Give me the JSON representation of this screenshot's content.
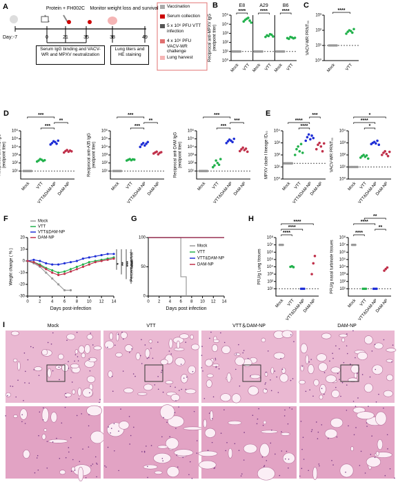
{
  "timeline": {
    "panel": "A",
    "top": "Protein + FH002C",
    "monitor": "Monitor weight loss and survival",
    "day_label": "Day:",
    "days": [
      -7,
      0,
      21,
      35,
      38,
      49
    ],
    "box1": "Serum IgG binding and VACV-WR and MPXV neutralization",
    "box2": "Lung titers and HE staining",
    "legend": [
      "Vaccination",
      "Serum collection",
      "5 x 10⁶ PFU VTT infection",
      "4 x 10⁶ PFU VACV-WR challenge",
      "Lung harvest"
    ]
  },
  "chart_data": [
    {
      "panel": "B",
      "type": "dot",
      "ylabel": [
        "Reciprocal anti-MPXV IgG",
        "(endpoint titer)"
      ],
      "log": true,
      "ylim": [
        1,
        100000
      ],
      "yticks": [
        {
          "value": 1,
          "label": "10⁰"
        },
        {
          "value": 10,
          "label": "10¹"
        },
        {
          "value": 100,
          "label": "10²"
        },
        {
          "value": 1000,
          "label": "10³"
        },
        {
          "value": 10000,
          "label": "10⁴"
        },
        {
          "value": 100000,
          "label": "10⁵"
        }
      ],
      "groups": [
        "E8",
        "A29",
        "B6"
      ],
      "categories": [
        "Mock",
        "VTT",
        "Mock",
        "VTT",
        "Mock",
        "VTT"
      ],
      "colors": [
        "#999999",
        "#22b14c",
        "#999999",
        "#22b14c",
        "#999999",
        "#22b14c"
      ],
      "points": [
        [
          10,
          10,
          10,
          10,
          10,
          10
        ],
        [
          20000,
          30000,
          40000,
          50000,
          25000,
          15000
        ],
        [
          10,
          10,
          10,
          10,
          10,
          10
        ],
        [
          400,
          600,
          500,
          800,
          700,
          450
        ],
        [
          10,
          10,
          10,
          10,
          10,
          10
        ],
        [
          300,
          250,
          400,
          350,
          280,
          320
        ]
      ],
      "limit": 10,
      "significance": [
        {
          "pair": [
            0,
            1
          ],
          "label": "****"
        },
        {
          "pair": [
            2,
            3
          ],
          "label": "****"
        },
        {
          "pair": [
            4,
            5
          ],
          "label": "****"
        }
      ]
    },
    {
      "panel": "C",
      "type": "dot",
      "ylabel": [
        "VACV-WR PRNT₅₀"
      ],
      "log": true,
      "ylim": [
        1,
        1000
      ],
      "yticks": [
        {
          "value": 1,
          "label": "10⁰"
        },
        {
          "value": 10,
          "label": "10¹"
        },
        {
          "value": 100,
          "label": "10²"
        },
        {
          "value": 1000,
          "label": "10³"
        }
      ],
      "categories": [
        "Mock",
        "VTT"
      ],
      "colors": [
        "#999999",
        "#22b14c"
      ],
      "points": [
        [
          10,
          10,
          10,
          10,
          10,
          10
        ],
        [
          60,
          80,
          100,
          90,
          70,
          120
        ]
      ],
      "limit": 10,
      "significance": [
        {
          "pair": [
            0,
            1
          ],
          "label": "****"
        }
      ]
    },
    {
      "panel": "D",
      "type": "dot",
      "ylabel": [
        "Reciprocal anti-M1 IgG",
        "(endpoint titer)"
      ],
      "log": true,
      "ylim": [
        1,
        1000000
      ],
      "yticks": [
        {
          "value": 10,
          "label": "10¹"
        },
        {
          "value": 100,
          "label": "10²"
        },
        {
          "value": 1000,
          "label": "10³"
        },
        {
          "value": 10000,
          "label": "10⁴"
        },
        {
          "value": 100000,
          "label": "10⁵"
        },
        {
          "value": 1000000,
          "label": "10⁶"
        }
      ],
      "categories": [
        "Mock",
        "VTT",
        "VTT&DAM-NP",
        "DAM-NP"
      ],
      "colors": [
        "#999999",
        "#22b14c",
        "#1f2fd6",
        "#c0304a"
      ],
      "points": [
        [
          10,
          10,
          10,
          10,
          10,
          10
        ],
        [
          150,
          200,
          300,
          250,
          180,
          220
        ],
        [
          20000,
          30000,
          50000,
          40000,
          25000,
          60000
        ],
        [
          2000,
          3000,
          4000,
          2500,
          3500,
          2800
        ]
      ],
      "limit": 10,
      "significance": [
        {
          "pair": [
            1,
            2
          ],
          "label": "***"
        },
        {
          "pair": [
            2,
            3
          ],
          "label": "**"
        },
        {
          "pair": [
            0,
            2
          ],
          "label": "***"
        }
      ]
    },
    {
      "type": "dot",
      "ylabel": [
        "Reciprocal anti-A35 IgG",
        "(endpoint titer)"
      ],
      "log": true,
      "ylim": [
        1,
        1000000
      ],
      "yticks": [
        {
          "value": 10,
          "label": "10¹"
        },
        {
          "value": 100,
          "label": "10²"
        },
        {
          "value": 1000,
          "label": "10³"
        },
        {
          "value": 10000,
          "label": "10⁴"
        },
        {
          "value": 100000,
          "label": "10⁵"
        },
        {
          "value": 1000000,
          "label": "10⁶"
        }
      ],
      "categories": [
        "Mock",
        "VTT",
        "VTT&DAM-NP",
        "DAM-NP"
      ],
      "colors": [
        "#999999",
        "#22b14c",
        "#1f2fd6",
        "#c0304a"
      ],
      "points": [
        [
          10,
          10,
          10,
          10,
          10,
          10
        ],
        [
          200,
          250,
          300,
          220,
          280,
          260
        ],
        [
          10000,
          20000,
          30000,
          15000,
          25000,
          40000
        ],
        [
          1500,
          2000,
          2500,
          1200,
          1800,
          2200
        ]
      ],
      "limit": 10,
      "significance": [
        {
          "pair": [
            1,
            2
          ],
          "label": "***"
        },
        {
          "pair": [
            2,
            3
          ],
          "label": "**"
        },
        {
          "pair": [
            0,
            2
          ],
          "label": "***"
        }
      ]
    },
    {
      "type": "dot",
      "ylabel": [
        "Reciprocal anti-DAM IgG",
        "(endpoint titer)"
      ],
      "log": true,
      "ylim": [
        1,
        1000000
      ],
      "yticks": [
        {
          "value": 10,
          "label": "10¹"
        },
        {
          "value": 100,
          "label": "10²"
        },
        {
          "value": 1000,
          "label": "10³"
        },
        {
          "value": 10000,
          "label": "10⁴"
        },
        {
          "value": 100000,
          "label": "10⁵"
        },
        {
          "value": 1000000,
          "label": "10⁶"
        }
      ],
      "categories": [
        "Mock",
        "VTT",
        "VTT&DAM-NP",
        "DAM-NP"
      ],
      "colors": [
        "#999999",
        "#22b14c",
        "#1f2fd6",
        "#c0304a"
      ],
      "points": [
        [
          10,
          10,
          10,
          10,
          10,
          10
        ],
        [
          30,
          50,
          200,
          100,
          60,
          300
        ],
        [
          30000,
          50000,
          80000,
          60000,
          40000,
          100000
        ],
        [
          3000,
          5000,
          8000,
          4000,
          6000,
          2500
        ]
      ],
      "limit": 10,
      "significance": [
        {
          "pair": [
            1,
            2
          ],
          "label": "***"
        },
        {
          "pair": [
            2,
            3
          ],
          "label": "***"
        },
        {
          "pair": [
            0,
            2
          ],
          "label": "***"
        }
      ]
    },
    {
      "panel": "E",
      "type": "dot",
      "ylabel": [
        "MPXV clade I lineage ID₅₀"
      ],
      "log": true,
      "ylim": [
        1,
        10000
      ],
      "yticks": [
        {
          "value": 1,
          "label": "10⁰"
        },
        {
          "value": 10,
          "label": "10¹"
        },
        {
          "value": 100,
          "label": "10²"
        },
        {
          "value": 1000,
          "label": "10³"
        },
        {
          "value": 10000,
          "label": "10⁴"
        }
      ],
      "categories": [
        "Mock",
        "VTT",
        "VTT&DAM-NP",
        "DAM-NP"
      ],
      "colors": [
        "#999999",
        "#22b14c",
        "#1f2fd6",
        "#c0304a"
      ],
      "points": [
        [
          20,
          20,
          20,
          20,
          20,
          20
        ],
        [
          100,
          300,
          500,
          200,
          800,
          150
        ],
        [
          1500,
          3000,
          5000,
          2000,
          4000,
          2500
        ],
        [
          300,
          700,
          1000,
          500,
          200,
          900
        ]
      ],
      "limit": 20,
      "significance": [
        {
          "pair": [
            1,
            2
          ],
          "label": "****"
        },
        {
          "pair": [
            0,
            2
          ],
          "label": "****"
        },
        {
          "pair": [
            2,
            3
          ],
          "label": "***"
        }
      ]
    },
    {
      "type": "dot",
      "ylabel": [
        "VACV-WR PRNT₅₀"
      ],
      "log": true,
      "ylim": [
        1,
        10000
      ],
      "yticks": [
        {
          "value": 1,
          "label": "10⁰"
        },
        {
          "value": 10,
          "label": "10¹"
        },
        {
          "value": 100,
          "label": "10²"
        },
        {
          "value": 1000,
          "label": "10³"
        },
        {
          "value": 10000,
          "label": "10⁴"
        }
      ],
      "categories": [
        "Mock",
        "VTT",
        "VTT&DAM-NP",
        "DAM-NP"
      ],
      "colors": [
        "#999999",
        "#22b14c",
        "#1f2fd6",
        "#c0304a"
      ],
      "points": [
        [
          10,
          10,
          10,
          10,
          10,
          10
        ],
        [
          60,
          80,
          100,
          70,
          90,
          50
        ],
        [
          800,
          1000,
          1200,
          900,
          1500,
          700
        ],
        [
          100,
          150,
          200,
          120,
          80,
          180
        ]
      ],
      "limit": 10,
      "significance": [
        {
          "pair": [
            1,
            2
          ],
          "label": "*"
        },
        {
          "pair": [
            0,
            2
          ],
          "label": "****"
        },
        {
          "pair": [
            0,
            3
          ],
          "label": "*"
        }
      ]
    },
    {
      "panel": "F",
      "type": "line",
      "ylabel": [
        "Weight change ( % )"
      ],
      "xlabel": "Days post-infection",
      "xlim": [
        0,
        14
      ],
      "xticks": [
        0,
        2,
        4,
        6,
        8,
        10,
        12,
        14
      ],
      "ylim": [
        -30,
        20
      ],
      "yticks": [
        -30,
        -20,
        -10,
        0,
        10,
        20
      ],
      "x": [
        0,
        1,
        2,
        3,
        4,
        5,
        6,
        7,
        8,
        9,
        10,
        11,
        12,
        13,
        14
      ],
      "markers": true,
      "series": [
        {
          "name": "Mock",
          "color": "#999999",
          "values": [
            0,
            -2,
            -5,
            -10,
            -15,
            -20,
            -25,
            -25,
            null,
            null,
            null,
            null,
            null,
            null,
            null
          ]
        },
        {
          "name": "VTT",
          "color": "#22b14c",
          "values": [
            0,
            -1,
            -3,
            -6,
            -8,
            -10,
            -9,
            -7,
            -5,
            -3,
            -1,
            0,
            1,
            2,
            3
          ]
        },
        {
          "name": "VTT&DAM-NP",
          "color": "#1f2fd6",
          "values": [
            0,
            1,
            0,
            -2,
            -3,
            -3,
            -2,
            -1,
            0,
            2,
            3,
            4,
            5,
            6,
            6
          ]
        },
        {
          "name": "DAM-NP",
          "color": "#c0304a",
          "values": [
            0,
            -1,
            -4,
            -7,
            -10,
            -12,
            -11,
            -9,
            -7,
            -5,
            -3,
            -1,
            0,
            1,
            2
          ]
        }
      ],
      "annotations": [
        "*",
        "**",
        "***",
        "****"
      ]
    },
    {
      "panel": "G",
      "type": "line",
      "ylabel": [
        "Percent survival"
      ],
      "xlabel": "Days post infection",
      "xlim": [
        0,
        14
      ],
      "xticks": [
        0,
        2,
        4,
        6,
        8,
        10,
        12,
        14
      ],
      "ylim": [
        0,
        100
      ],
      "yticks": [
        0,
        50,
        100
      ],
      "legend": "right",
      "series": [
        {
          "name": "Mock",
          "color": "#999999",
          "x": [
            0,
            6,
            6,
            7,
            7
          ],
          "values": [
            100,
            100,
            33,
            33,
            0
          ]
        },
        {
          "name": "VTT",
          "color": "#22b14c",
          "x": [
            0,
            14
          ],
          "values": [
            100,
            100
          ]
        },
        {
          "name": "VTT&DAM-NP",
          "color": "#1f2fd6",
          "x": [
            0,
            14
          ],
          "values": [
            100,
            100
          ]
        },
        {
          "name": "DAM-NP",
          "color": "#c0304a",
          "x": [
            0,
            14
          ],
          "values": [
            100,
            100
          ]
        }
      ]
    },
    {
      "panel": "H",
      "type": "dot",
      "ylabel": [
        "PFU/g Lung tissues"
      ],
      "log": true,
      "ylim": [
        1,
        100000000
      ],
      "yticks": [
        {
          "value": 10,
          "label": "10¹"
        },
        {
          "value": 100,
          "label": "10²"
        },
        {
          "value": 1000,
          "label": "10³"
        },
        {
          "value": 10000,
          "label": "10⁴"
        },
        {
          "value": 100000,
          "label": "10⁵"
        },
        {
          "value": 1000000,
          "label": "10⁶"
        },
        {
          "value": 10000000,
          "label": "10⁷"
        },
        {
          "value": 100000000,
          "label": "10⁸"
        }
      ],
      "categories": [
        "Mock",
        "VTT",
        "VTT&DAM-NP",
        "DAM-NP"
      ],
      "colors": [
        "#999999",
        "#22b14c",
        "#1f2fd6",
        "#c0304a"
      ],
      "points": [
        [
          10000000,
          10000000,
          10000000
        ],
        [
          10000,
          12000,
          9000
        ],
        [
          10,
          10,
          10
        ],
        [
          1000,
          30000,
          300000
        ]
      ],
      "limit": 10,
      "significance": [
        {
          "pair": [
            0,
            1
          ],
          "label": "****"
        },
        {
          "pair": [
            0,
            2
          ],
          "label": "****"
        },
        {
          "pair": [
            0,
            3
          ],
          "label": "****"
        }
      ]
    },
    {
      "type": "dot",
      "ylabel": [
        "PFU/g nasal turbinate tissues"
      ],
      "log": true,
      "ylim": [
        1,
        100000000
      ],
      "yticks": [
        {
          "value": 10,
          "label": "10¹"
        },
        {
          "value": 100,
          "label": "10²"
        },
        {
          "value": 1000,
          "label": "10³"
        },
        {
          "value": 10000,
          "label": "10⁴"
        },
        {
          "value": 100000,
          "label": "10⁵"
        },
        {
          "value": 1000000,
          "label": "10⁶"
        },
        {
          "value": 10000000,
          "label": "10⁷"
        },
        {
          "value": 100000000,
          "label": "10⁸"
        }
      ],
      "categories": [
        "Mock",
        "VTT",
        "VTT&DAM-NP",
        "DAM-NP"
      ],
      "colors": [
        "#999999",
        "#22b14c",
        "#1f2fd6",
        "#c0304a"
      ],
      "points": [
        [
          10000000,
          10000000,
          10000000
        ],
        [
          10,
          10,
          10
        ],
        [
          10,
          10,
          10
        ],
        [
          3000,
          5000,
          8000
        ]
      ],
      "limit": 10,
      "significance": [
        {
          "pair": [
            0,
            1
          ],
          "label": "****"
        },
        {
          "pair": [
            2,
            3
          ],
          "label": "**"
        },
        {
          "pair": [
            0,
            2
          ],
          "label": "****"
        },
        {
          "pair": [
            1,
            3
          ],
          "label": "**"
        }
      ]
    }
  ],
  "histology": {
    "panel": "I",
    "columns": [
      "Mock",
      "VTT",
      "VTT＆DAM-NP",
      "DAM-NP"
    ]
  }
}
